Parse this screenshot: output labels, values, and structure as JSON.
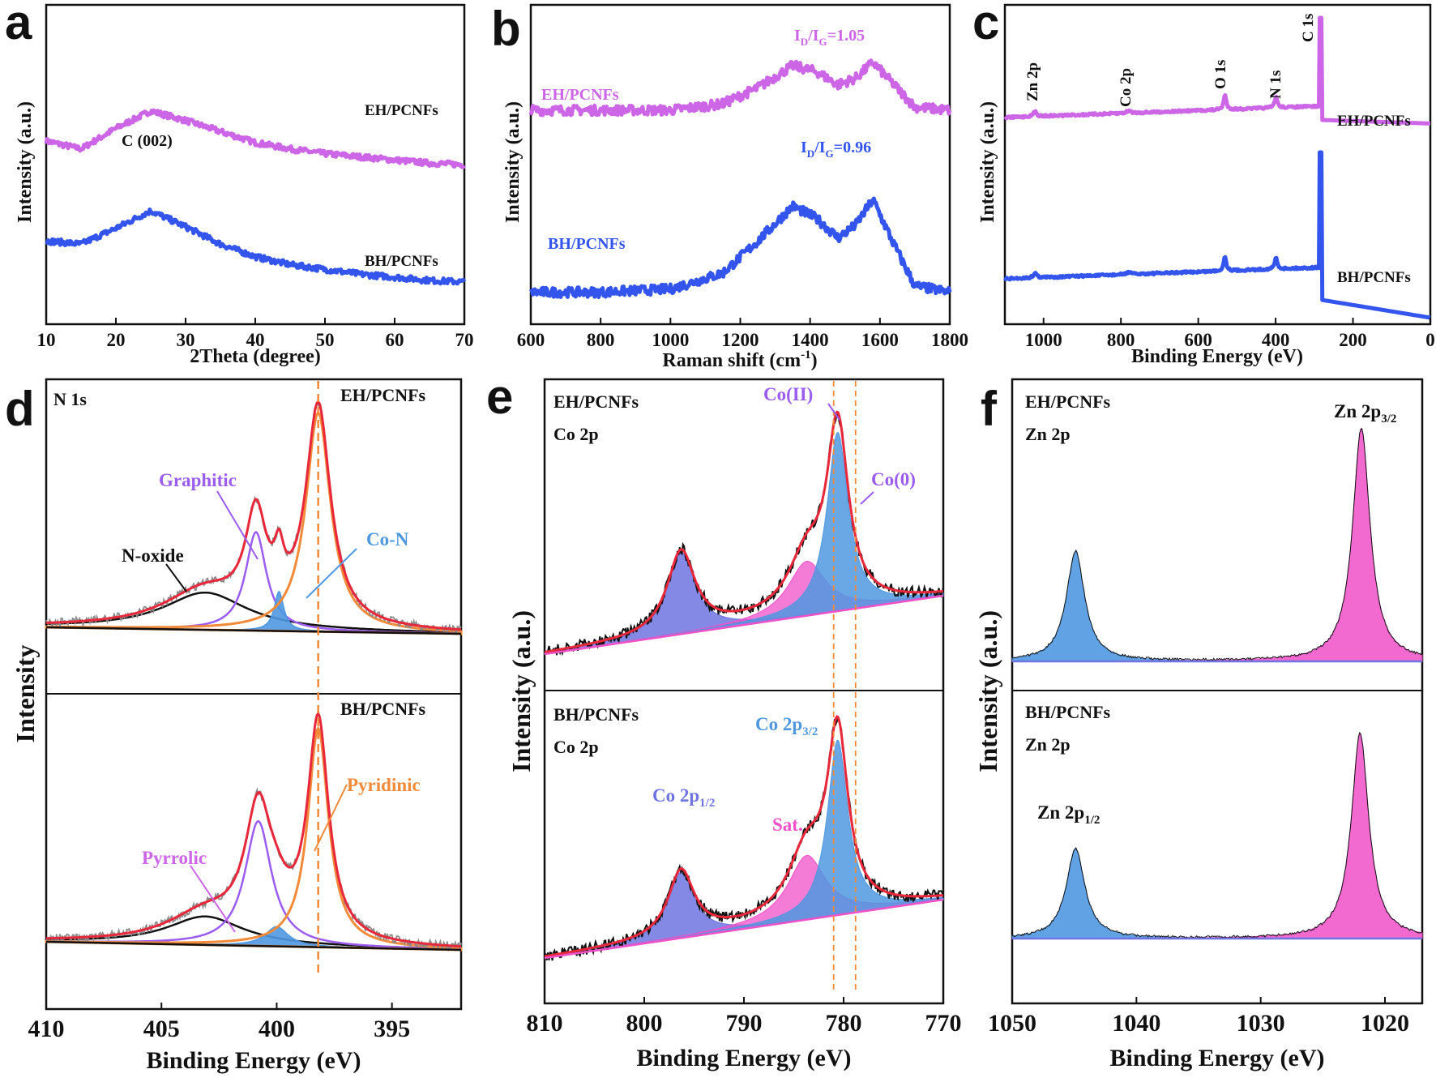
{
  "colors": {
    "magenta": "#cc66e6",
    "blue": "#3355ee",
    "violet": "#9b5cf0",
    "orange": "#f28a3a",
    "skyblue": "#4f98e0",
    "pink": "#f050c8",
    "red": "#e8283a",
    "gray": "#8a8a8a",
    "black": "#111111",
    "periwinkle": "#6f74e0",
    "yellow": "#e2c93c"
  },
  "chart_data": [
    {
      "id": "a",
      "type": "line",
      "letter": "a",
      "xlabel": "2Theta (degree)",
      "ylabel": "Intensity (a.u.)",
      "xlim": [
        10,
        70
      ],
      "xticks": [
        10,
        20,
        30,
        40,
        50,
        60,
        70
      ],
      "series": [
        {
          "name": "EH/PCNFs",
          "color": "#cc66e6",
          "offset": 0.72,
          "points": [
            [
              10,
              0.0
            ],
            [
              15,
              -0.05
            ],
            [
              20,
              0.08
            ],
            [
              25,
              0.19
            ],
            [
              30,
              0.13
            ],
            [
              35,
              0.06
            ],
            [
              40,
              -0.01
            ],
            [
              45,
              -0.05
            ],
            [
              50,
              -0.08
            ],
            [
              55,
              -0.1
            ],
            [
              60,
              -0.12
            ],
            [
              65,
              -0.14
            ],
            [
              70,
              -0.15
            ]
          ]
        },
        {
          "name": "BH/PCNFs",
          "color": "#3355ee",
          "offset": 0.22,
          "points": [
            [
              10,
              0.18
            ],
            [
              15,
              0.16
            ],
            [
              20,
              0.26
            ],
            [
              25,
              0.37
            ],
            [
              30,
              0.27
            ],
            [
              35,
              0.16
            ],
            [
              40,
              0.08
            ],
            [
              45,
              0.03
            ],
            [
              50,
              0.0
            ],
            [
              55,
              -0.03
            ],
            [
              60,
              -0.05
            ],
            [
              65,
              -0.07
            ],
            [
              70,
              -0.08
            ]
          ]
        }
      ],
      "annotations": [
        "C (002)"
      ]
    },
    {
      "id": "b",
      "type": "line",
      "letter": "b",
      "xlabel": "Raman shift (cm",
      "xlabel_sup": "-1",
      "xlabel_end": ")",
      "ylabel": "Intensity (a.u.)",
      "xlim": [
        600,
        1800
      ],
      "xticks": [
        600,
        800,
        1000,
        1200,
        1400,
        1600,
        1800
      ],
      "series": [
        {
          "name": "EH/PCNFs",
          "color": "#cc66e6",
          "ratio_label": "I",
          "ratio_sub_d": "D",
          "ratio_sub_g": "G",
          "ratio_value": "=1.05",
          "points": [
            [
              600,
              0.67
            ],
            [
              800,
              0.67
            ],
            [
              1000,
              0.67
            ],
            [
              1150,
              0.69
            ],
            [
              1250,
              0.74
            ],
            [
              1350,
              0.81
            ],
            [
              1420,
              0.79
            ],
            [
              1480,
              0.75
            ],
            [
              1530,
              0.77
            ],
            [
              1580,
              0.82
            ],
            [
              1640,
              0.75
            ],
            [
              1700,
              0.68
            ],
            [
              1800,
              0.67
            ]
          ]
        },
        {
          "name": "BH/PCNFs",
          "color": "#3355ee",
          "ratio_label": "I",
          "ratio_sub_d": "D",
          "ratio_sub_g": "G",
          "ratio_value": "=0.96",
          "points": [
            [
              600,
              0.1
            ],
            [
              800,
              0.1
            ],
            [
              1000,
              0.11
            ],
            [
              1150,
              0.16
            ],
            [
              1250,
              0.26
            ],
            [
              1350,
              0.37
            ],
            [
              1420,
              0.33
            ],
            [
              1480,
              0.27
            ],
            [
              1530,
              0.31
            ],
            [
              1580,
              0.39
            ],
            [
              1640,
              0.25
            ],
            [
              1700,
              0.12
            ],
            [
              1800,
              0.1
            ]
          ]
        }
      ]
    },
    {
      "id": "c",
      "type": "line",
      "letter": "c",
      "xlabel": "Binding Energy (eV)",
      "ylabel": "Intensity (a.u.)",
      "xlim": [
        1100,
        0
      ],
      "xticks": [
        1000,
        800,
        600,
        400,
        200,
        0
      ],
      "series": [
        {
          "name": "EH/PCNFs",
          "color": "#cc66e6"
        },
        {
          "name": "BH/PCNFs",
          "color": "#3355ee"
        }
      ],
      "peak_labels": [
        {
          "label": "Zn 2p",
          "energy": 1022
        },
        {
          "label": "Co 2p",
          "energy": 780
        },
        {
          "label": "O 1s",
          "energy": 531
        },
        {
          "label": "N 1s",
          "energy": 399
        },
        {
          "label": "C 1s",
          "energy": 285
        }
      ]
    },
    {
      "id": "d",
      "type": "area",
      "letter": "d",
      "xlabel": "Binding Energy (eV)",
      "ylabel": "Intensity",
      "xlim": [
        410,
        392
      ],
      "xticks": [
        410,
        405,
        400,
        395
      ],
      "marker_line": 398.2,
      "panels": [
        {
          "name": "EH/PCNFs",
          "title": "N 1s",
          "components": [
            {
              "label": "N-oxide",
              "center": 403.1,
              "height": 0.17,
              "width": 2.2
            },
            {
              "label": "Graphitic",
              "center": 400.9,
              "height": 0.45,
              "width": 0.55
            },
            {
              "label": "Co-N",
              "center": 399.9,
              "height": 0.18,
              "width": 0.25
            },
            {
              "label": "Pyridinic",
              "center": 398.2,
              "height": 1.0,
              "width": 0.65
            }
          ]
        },
        {
          "name": "BH/PCNFs",
          "title": "",
          "components": [
            {
              "label": "N-oxide",
              "center": 403.1,
              "height": 0.13,
              "width": 2.0
            },
            {
              "label": "Graphitic",
              "center": 400.8,
              "height": 0.57,
              "width": 0.7
            },
            {
              "label": "Pyrrolic",
              "center": 400.0,
              "height": 0.09,
              "width": 0.6
            },
            {
              "label": "Pyridinic",
              "center": 398.2,
              "height": 1.0,
              "width": 0.55
            }
          ]
        }
      ],
      "labels": [
        "N-oxide",
        "Graphitic",
        "Co-N",
        "Pyrrolic",
        "Pyridinic"
      ]
    },
    {
      "id": "e",
      "type": "area",
      "letter": "e",
      "xlabel": "Binding Energy (eV)",
      "ylabel": "Intensity (a.u.)",
      "xlim": [
        810,
        770
      ],
      "xticks": [
        810,
        800,
        790,
        780,
        770
      ],
      "marker_lines": [
        781.0,
        778.8
      ],
      "panels": [
        {
          "name": "EH/PCNFs",
          "title": "Co 2p",
          "components": [
            {
              "label": "Co 2p1/2",
              "center": 796.3,
              "height": 0.42,
              "width": 1.7
            },
            {
              "label": "Sat.",
              "center": 783.7,
              "height": 0.28,
              "width": 2.3
            },
            {
              "label": "Co 2p3/2",
              "center": 780.6,
              "height": 0.92,
              "width": 1.3
            }
          ]
        },
        {
          "name": "BH/PCNFs",
          "title": "Co 2p",
          "components": [
            {
              "label": "Co 2p1/2",
              "center": 796.3,
              "height": 0.34,
              "width": 1.6
            },
            {
              "label": "Sat.",
              "center": 783.7,
              "height": 0.33,
              "width": 2.3
            },
            {
              "label": "Co 2p3/2",
              "center": 780.6,
              "height": 0.9,
              "width": 1.25
            }
          ]
        }
      ],
      "labels": {
        "co2": "Co(II)",
        "co0": "Co(0)",
        "p12": "Co 2p",
        "p12_sub": "1/2",
        "p32": "Co 2p",
        "p32_sub": "3/2",
        "sat": "Sat."
      }
    },
    {
      "id": "f",
      "type": "area",
      "letter": "f",
      "xlabel": "Binding Energy (eV)",
      "ylabel": "Intensity (a.u.)",
      "xlim": [
        1050,
        1017
      ],
      "xticks": [
        1050,
        1040,
        1030,
        1020
      ],
      "panels": [
        {
          "name": "EH/PCNFs",
          "title": "Zn 2p",
          "components": [
            {
              "label": "Zn 2p1/2",
              "center": 1044.9,
              "height": 0.47,
              "width": 0.9
            },
            {
              "label": "Zn 2p3/2",
              "center": 1021.9,
              "height": 1.0,
              "width": 0.85
            }
          ]
        },
        {
          "name": "BH/PCNFs",
          "title": "Zn 2p",
          "components": [
            {
              "label": "Zn 2p1/2",
              "center": 1044.9,
              "height": 0.44,
              "width": 0.9
            },
            {
              "label": "Zn 2p3/2",
              "center": 1022.0,
              "height": 1.0,
              "width": 0.85
            }
          ]
        }
      ],
      "labels": {
        "p32": "Zn 2p",
        "p32_sub": "3/2",
        "p12": "Zn 2p",
        "p12_sub": "1/2"
      }
    }
  ]
}
